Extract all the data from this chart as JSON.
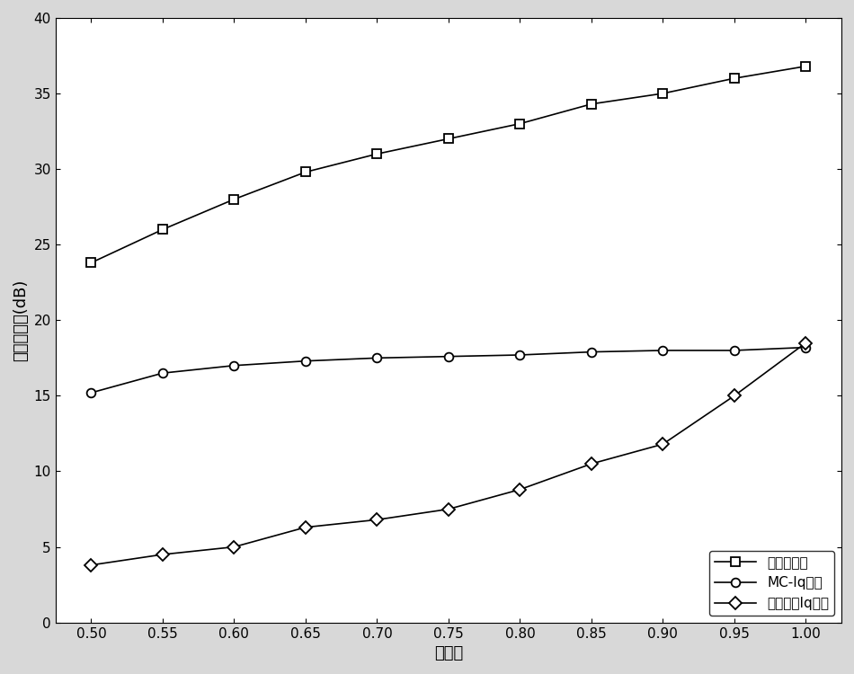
{
  "x": [
    0.5,
    0.55,
    0.6,
    0.65,
    0.7,
    0.75,
    0.8,
    0.85,
    0.9,
    0.95,
    1.0
  ],
  "series1": [
    23.8,
    26.0,
    28.0,
    29.8,
    31.0,
    32.0,
    33.0,
    34.3,
    35.0,
    36.0,
    36.8
  ],
  "series2": [
    15.2,
    16.5,
    17.0,
    17.3,
    17.5,
    17.6,
    17.7,
    17.9,
    18.0,
    18.0,
    18.2
  ],
  "series3": [
    3.8,
    4.5,
    5.0,
    6.3,
    6.8,
    7.5,
    8.8,
    10.5,
    11.8,
    15.0,
    18.5
  ],
  "xlabel": "采样率",
  "ylabel": "重构信噪比(dB)",
  "xlim": [
    0.475,
    1.025
  ],
  "ylim": [
    0,
    40
  ],
  "xticks": [
    0.5,
    0.55,
    0.6,
    0.65,
    0.7,
    0.75,
    0.8,
    0.85,
    0.9,
    0.95,
    1.0
  ],
  "yticks": [
    0,
    5,
    10,
    15,
    20,
    25,
    30,
    35,
    40
  ],
  "legend1": "本发明方法",
  "legend2": "MC-Iq方法",
  "legend3": "迭代加权Iq方法",
  "line_color": "#000000",
  "marker_square": "s",
  "marker_circle": "o",
  "marker_diamond": "D",
  "linewidth": 1.2,
  "markersize": 7,
  "legend_loc": "lower right",
  "font_size_label": 13,
  "font_size_tick": 11,
  "font_size_legend": 11,
  "axes_facecolor": "#ffffff",
  "figure_facecolor": "#d8d8d8"
}
